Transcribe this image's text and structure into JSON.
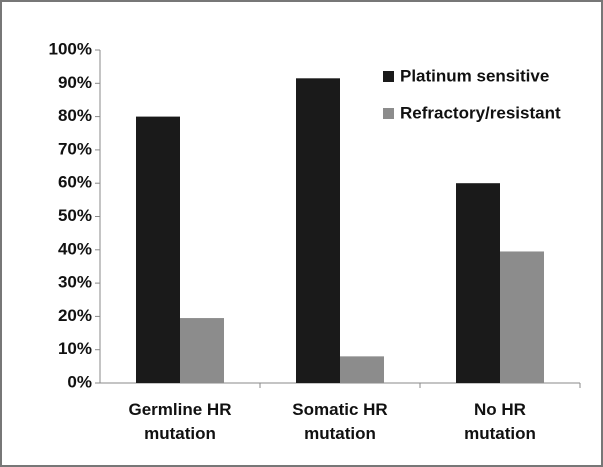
{
  "chart_data": {
    "type": "bar",
    "categories": [
      "Germline HR mutation",
      "Somatic HR mutation",
      "No HR mutation"
    ],
    "series": [
      {
        "name": "Platinum sensitive",
        "color": "#1a1a1a",
        "values": [
          80,
          91.5,
          60
        ]
      },
      {
        "name": "Refractory/resistant",
        "color": "#8c8c8c",
        "values": [
          19.5,
          8,
          39.5
        ]
      }
    ],
    "ylim": [
      0,
      100
    ],
    "yticks": [
      {
        "value": 0,
        "label": "0%"
      },
      {
        "value": 10,
        "label": "10%"
      },
      {
        "value": 20,
        "label": "20%"
      },
      {
        "value": 30,
        "label": "30%"
      },
      {
        "value": 40,
        "label": "40%"
      },
      {
        "value": 50,
        "label": "50%"
      },
      {
        "value": 60,
        "label": "60%"
      },
      {
        "value": 70,
        "label": "70%"
      },
      {
        "value": 80,
        "label": "80%"
      },
      {
        "value": 90,
        "label": "90%"
      },
      {
        "value": 100,
        "label": "100%"
      }
    ],
    "legend": "top-right"
  }
}
